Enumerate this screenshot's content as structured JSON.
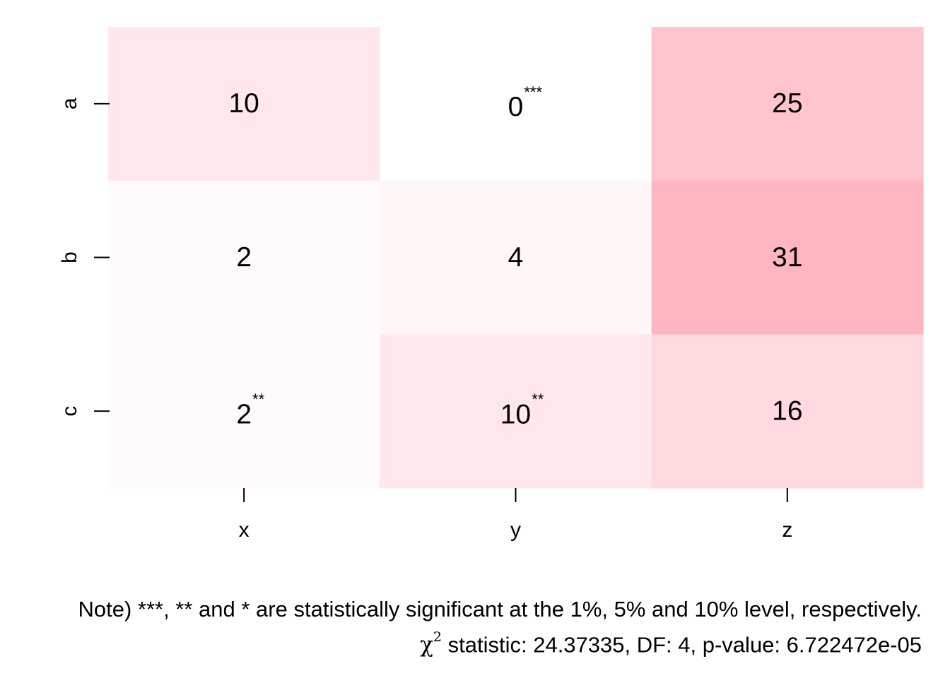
{
  "chart_data": {
    "type": "heatmap",
    "rows": [
      "a",
      "b",
      "c"
    ],
    "columns": [
      "x",
      "y",
      "z"
    ],
    "values": [
      [
        10,
        0,
        25
      ],
      [
        2,
        4,
        31
      ],
      [
        2,
        10,
        16
      ]
    ],
    "significance": [
      [
        "",
        "***",
        ""
      ],
      [
        "",
        "",
        ""
      ],
      [
        "**",
        "**",
        ""
      ]
    ],
    "color_low": "#ffffff",
    "color_high": "#ffb6c1",
    "value_range": [
      0,
      31
    ],
    "grid": false,
    "legend": "none"
  },
  "note": {
    "significance_text": "Note) ***,  ** and * are statistically significant at the 1%, 5% and 10% level, respectively.",
    "chi_symbol": "χ",
    "chi_exponent": "2",
    "statistic_text": " statistic: 24.37335, DF: 4, p-value: 6.722472e-05"
  }
}
